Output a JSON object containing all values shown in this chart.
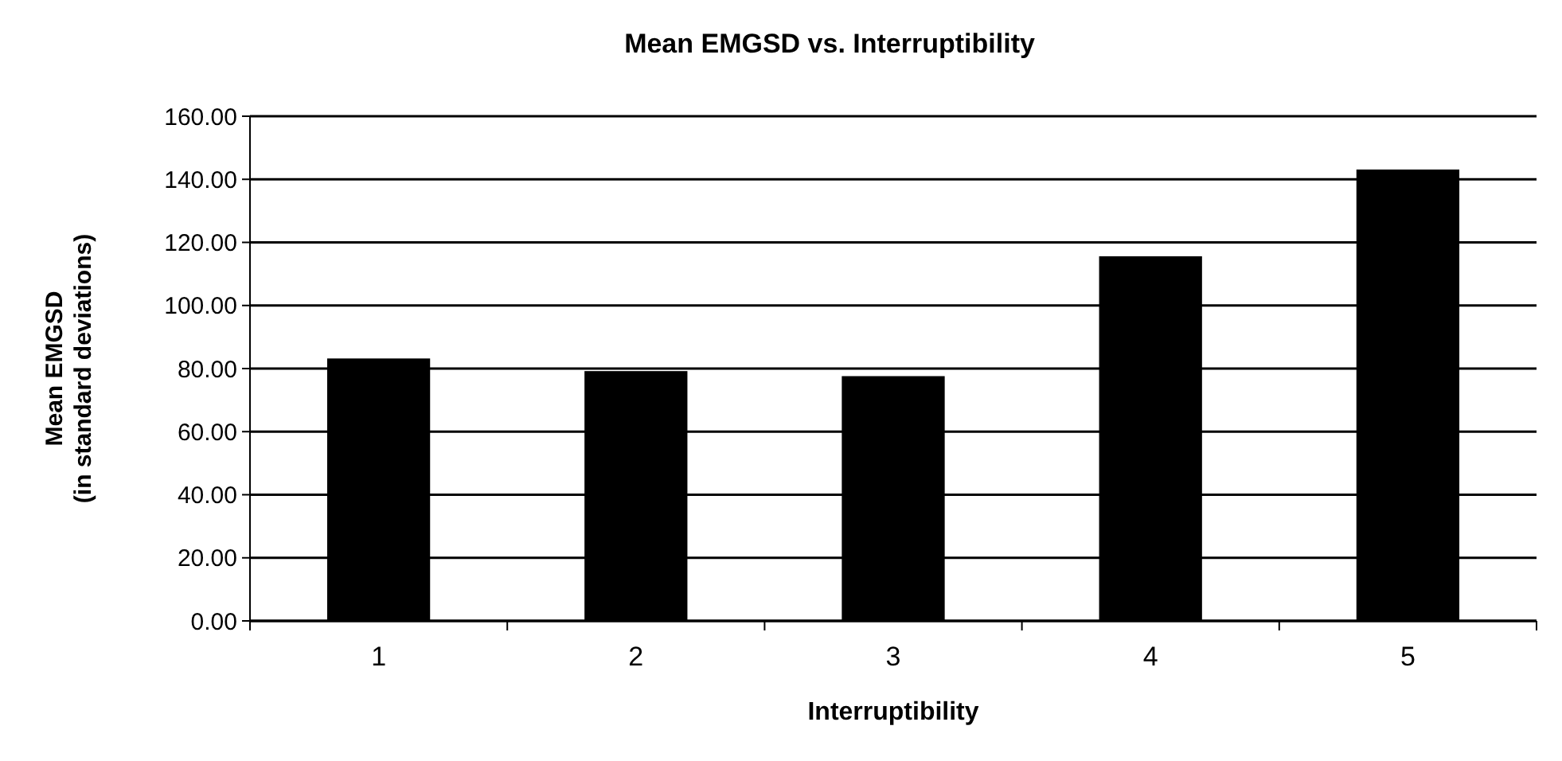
{
  "chart_data": {
    "type": "bar",
    "title": "Mean EMGSD vs. Interruptibility",
    "xlabel": "Interruptibility",
    "ylabel": "Mean EMGSD\n(in standard deviations)",
    "categories": [
      "1",
      "2",
      "3",
      "4",
      "5"
    ],
    "values": [
      83.2,
      79.2,
      77.6,
      115.6,
      143.1
    ],
    "color": "#000000",
    "ylim": [
      0,
      160
    ],
    "yticks": [
      {
        "value": 0,
        "label": "0.00"
      },
      {
        "value": 20,
        "label": "20.00"
      },
      {
        "value": 40,
        "label": "40.00"
      },
      {
        "value": 60,
        "label": "60.00"
      },
      {
        "value": 80,
        "label": "80.00"
      },
      {
        "value": 100,
        "label": "100.00"
      },
      {
        "value": 120,
        "label": "120.00"
      },
      {
        "value": 140,
        "label": "140.00"
      },
      {
        "value": 160,
        "label": "160.00"
      }
    ],
    "grid": "y"
  }
}
